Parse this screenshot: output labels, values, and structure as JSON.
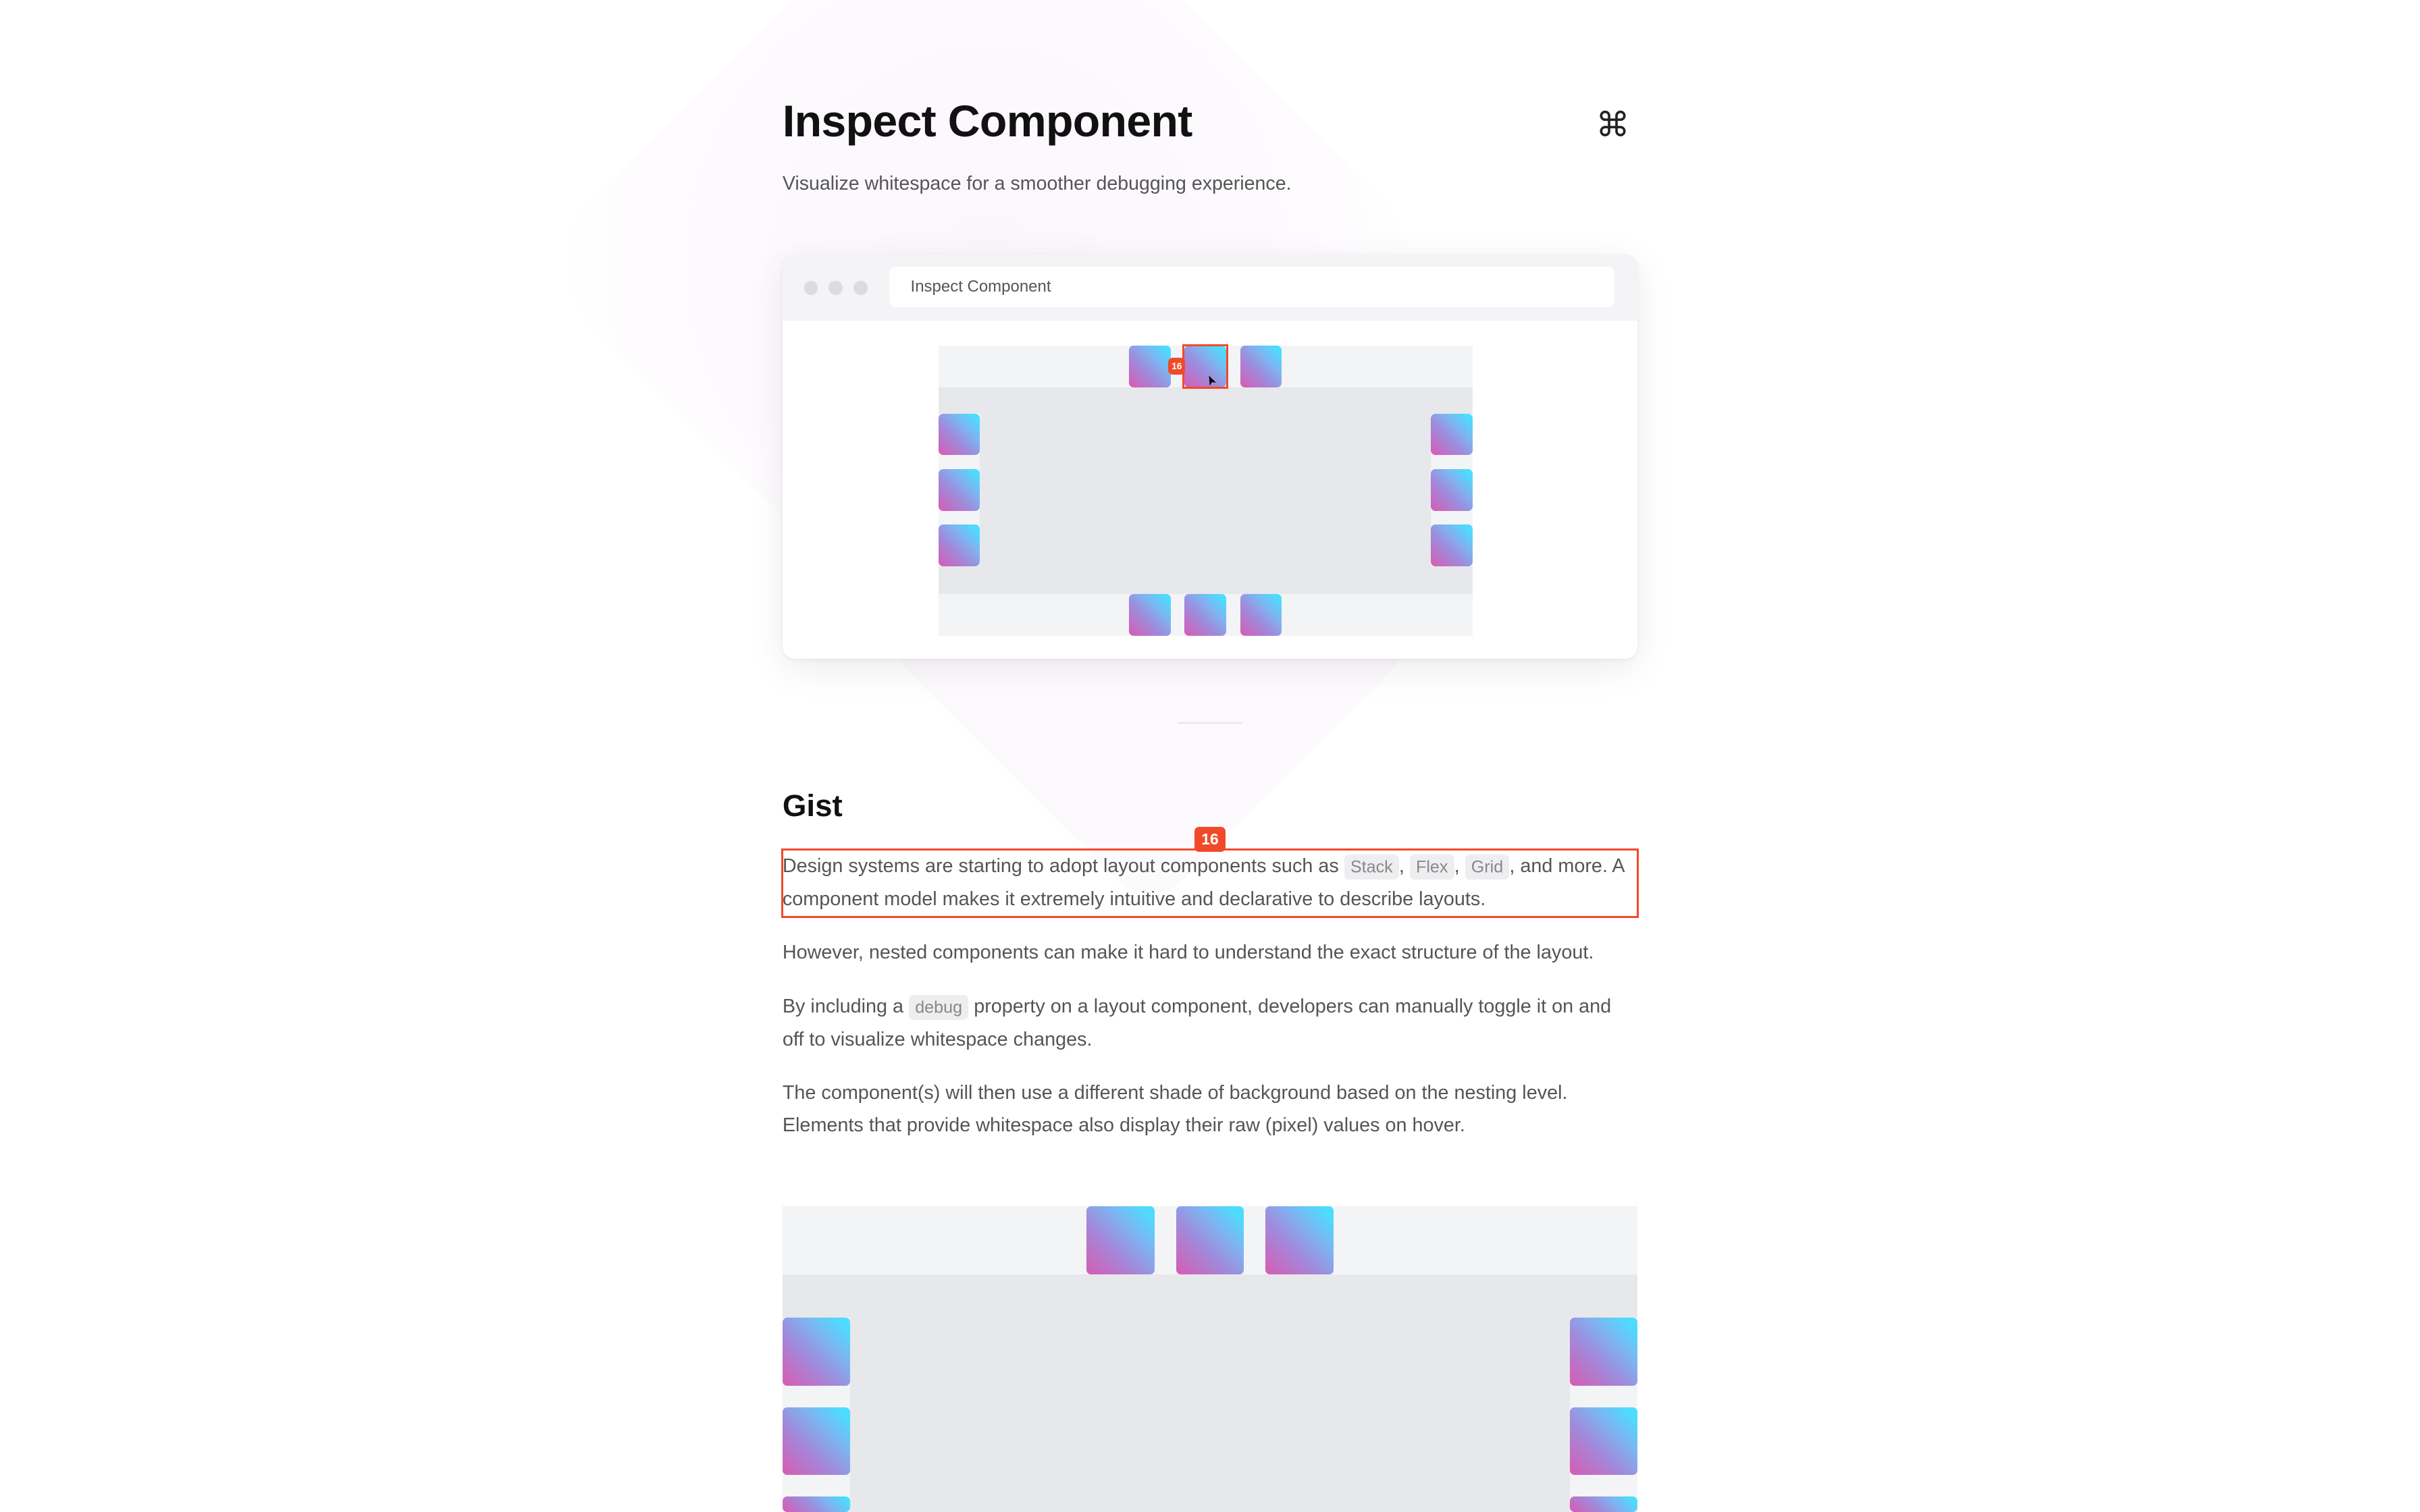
{
  "header": {
    "title": "Inspect Component",
    "subtitle": "Visualize whitespace for a smoother debugging experience.",
    "shortcut_icon": "command-icon",
    "shortcut_glyph": "⌘"
  },
  "preview": {
    "address": "Inspect Component",
    "hover_value": "16"
  },
  "gist": {
    "heading": "Gist",
    "hover_value": "16",
    "p1_a": "Design systems are starting to adopt layout components such as ",
    "code_stack": "Stack",
    "sep1": ", ",
    "code_flex": "Flex",
    "sep2": ", ",
    "code_grid": "Grid",
    "p1_b": ", and more. A component model makes it extremely intuitive and declarative to describe layouts.",
    "p2": "However, nested components can make it hard to understand the exact structure of the layout.",
    "p3_a": "By including a ",
    "code_debug": "debug",
    "p3_b": " property on a layout component, developers can manually toggle it on and off to visualize whitespace changes.",
    "p4": "The component(s) will then use a different shade of background based on the nesting level. Elements that provide whitespace also display their raw (pixel) values on hover."
  },
  "colors": {
    "accent": "#f04a2a",
    "gradient_start": "#d95bb3",
    "gradient_end": "#4ddcfd",
    "outer_bg": "#f3f4f6",
    "inner_bg": "#e7e8ec"
  }
}
